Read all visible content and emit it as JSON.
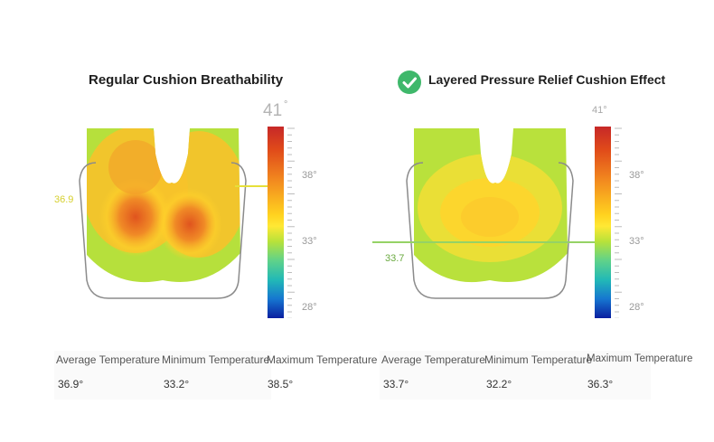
{
  "chart_data": [
    {
      "type": "heatmap",
      "title": "Regular Cushion Breathability",
      "colorbar": {
        "ticks": [
          "38°",
          "33°",
          "28°"
        ],
        "top_label": "41",
        "top_label_degree": "°"
      },
      "marker": {
        "label": "36.9",
        "value": 36.9,
        "color": "#e0dc3a"
      },
      "stats": {
        "labels": [
          "Average Temperature",
          "Minimum Temperature",
          "Maximum Temperature"
        ],
        "values": [
          "36.9°",
          "33.2°",
          "38.5°"
        ]
      }
    },
    {
      "type": "heatmap",
      "title": "Layered Pressure Relief Cushion Effect",
      "badge_icon": "check-circle-icon",
      "colorbar": {
        "ticks": [
          "38°",
          "33°",
          "28°"
        ],
        "top_label": "41°"
      },
      "marker": {
        "label": "33.7",
        "value": 33.7,
        "color": "#8dcf5a"
      },
      "stats": {
        "labels": [
          "Average Temperature",
          "Minimum Temperature",
          "Maximum Temperature"
        ],
        "values": [
          "33.7°",
          "32.2°",
          "36.3°"
        ]
      }
    }
  ],
  "colors": {
    "accent_check": "#3fb86b",
    "hot": "#c62828",
    "warm": "#ffd21f",
    "cool": "#b8e23a",
    "cold": "#0a1fa0"
  }
}
